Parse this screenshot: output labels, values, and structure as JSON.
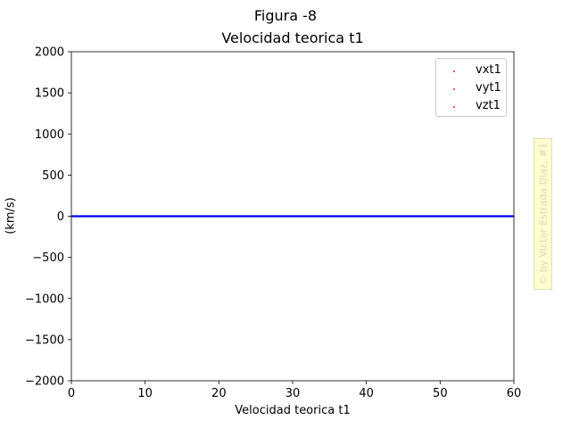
{
  "figure": {
    "suptitle": "Figura -8",
    "watermark": "© by Victor Estrada Diaz, #1"
  },
  "chart_data": {
    "type": "scatter",
    "title": "Velocidad teorica t1",
    "xlabel": "Velocidad teorica t1",
    "ylabel": "(km/s)",
    "xlim": [
      0,
      60
    ],
    "ylim": [
      -2000,
      2000
    ],
    "xticks": [
      0,
      10,
      20,
      30,
      40,
      50,
      60
    ],
    "yticks": [
      2000,
      1500,
      1000,
      500,
      0,
      -500,
      -1000,
      -1500,
      -2000
    ],
    "xtick_labels": [
      "0",
      "10",
      "20",
      "30",
      "40",
      "50",
      "60"
    ],
    "ytick_labels": [
      "2000",
      "1500",
      "1000",
      "500",
      "0",
      "−500",
      "−1000",
      "−1500",
      "−2000"
    ],
    "grid": false,
    "legend_position": "top-right",
    "series": [
      {
        "name": "vxt1",
        "color": "#d62728",
        "x": [
          0,
          60
        ],
        "y": [
          0,
          0
        ]
      },
      {
        "name": "vyt1",
        "color": "#d62728",
        "x": [
          0,
          60
        ],
        "y": [
          0,
          0
        ]
      },
      {
        "name": "vzt1",
        "color": "#d62728",
        "x": [
          0,
          60
        ],
        "y": [
          0,
          0
        ]
      }
    ],
    "reference_line": {
      "y": 0,
      "color": "#0000ff"
    }
  }
}
